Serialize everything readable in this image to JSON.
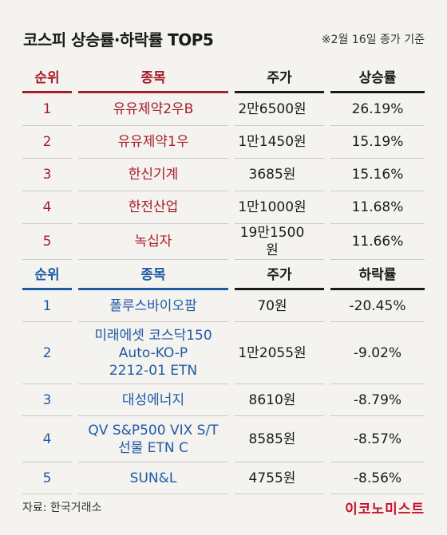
{
  "title": "코스피 상승률·하락률 TOP5",
  "note": "※2월 16일 종가 기준",
  "gainers": {
    "headers": [
      "순위",
      "종목",
      "주가",
      "상승률"
    ],
    "rows": [
      {
        "rank": "1",
        "name": "유유제약2우B",
        "price": "2만6500원",
        "rate": "26.19%"
      },
      {
        "rank": "2",
        "name": "유유제약1우",
        "price": "1만1450원",
        "rate": "15.19%"
      },
      {
        "rank": "3",
        "name": "한신기계",
        "price": "3685원",
        "rate": "15.16%"
      },
      {
        "rank": "4",
        "name": "한전산업",
        "price": "1만1000원",
        "rate": "11.68%"
      },
      {
        "rank": "5",
        "name": "녹십자",
        "price": "19만1500원",
        "rate": "11.66%"
      }
    ]
  },
  "losers": {
    "headers": [
      "순위",
      "종목",
      "주가",
      "하락률"
    ],
    "rows": [
      {
        "rank": "1",
        "name": "폴루스바이오팜",
        "price": "70원",
        "rate": "-20.45%"
      },
      {
        "rank": "2",
        "name": "미래에셋 코스닥150\nAuto-KO-P\n2212-01 ETN",
        "price": "1만2055원",
        "rate": "-9.02%"
      },
      {
        "rank": "3",
        "name": "대성에너지",
        "price": "8610원",
        "rate": "-8.79%"
      },
      {
        "rank": "4",
        "name": "QV S&P500 VIX S/T\n선물 ETN C",
        "price": "8585원",
        "rate": "-8.57%"
      },
      {
        "rank": "5",
        "name": "SUN&L",
        "price": "4755원",
        "rate": "-8.56%"
      }
    ]
  },
  "source": "자료: 한국거래소",
  "logo": "이코노미스트",
  "colors": {
    "gain": "#a71d2a",
    "loss": "#1f5aa6",
    "logo": "#c8102e"
  }
}
